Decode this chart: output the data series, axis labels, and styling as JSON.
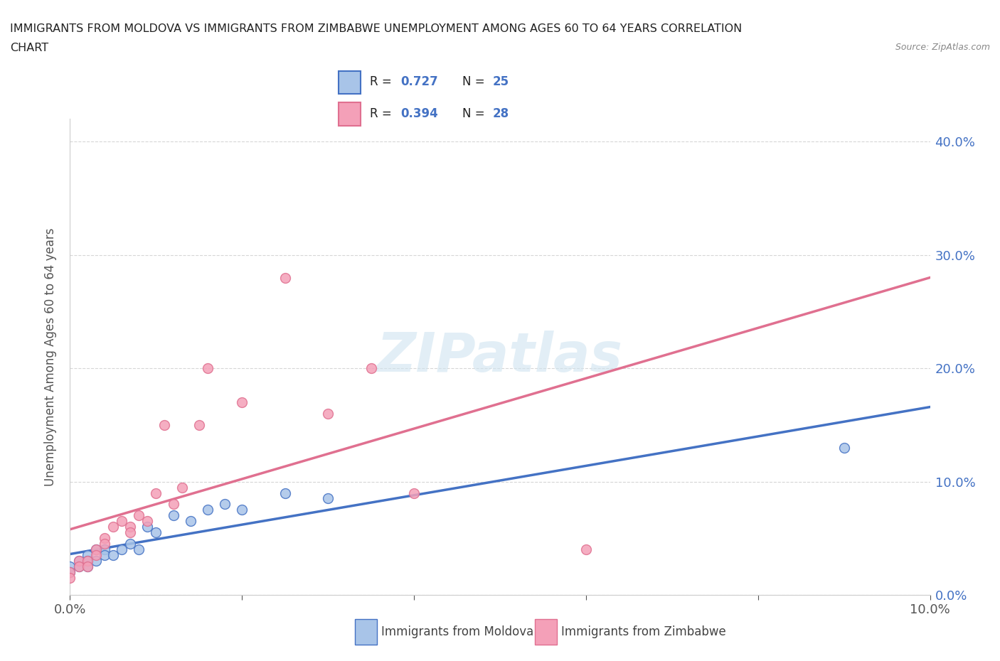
{
  "title_line1": "IMMIGRANTS FROM MOLDOVA VS IMMIGRANTS FROM ZIMBABWE UNEMPLOYMENT AMONG AGES 60 TO 64 YEARS CORRELATION",
  "title_line2": "CHART",
  "source": "Source: ZipAtlas.com",
  "ylabel": "Unemployment Among Ages 60 to 64 years",
  "xlim": [
    0.0,
    0.1
  ],
  "ylim": [
    0.0,
    0.42
  ],
  "yticks": [
    0.0,
    0.1,
    0.2,
    0.3,
    0.4
  ],
  "ytick_labels": [
    "0.0%",
    "10.0%",
    "20.0%",
    "30.0%",
    "40.0%"
  ],
  "xticks": [
    0.0,
    0.02,
    0.04,
    0.06,
    0.08,
    0.1
  ],
  "xtick_labels": [
    "0.0%",
    "",
    "",
    "",
    "",
    "10.0%"
  ],
  "moldova_color": "#a8c4e8",
  "zimbabwe_color": "#f4a0b8",
  "moldova_line_color": "#4472c4",
  "zimbabwe_line_color": "#e07090",
  "zimbabwe_dashed_color": "#e8a0b0",
  "right_axis_color": "#4472c4",
  "R_moldova": 0.727,
  "N_moldova": 25,
  "R_zimbabwe": 0.394,
  "N_zimbabwe": 28,
  "watermark": "ZIPatlas",
  "moldova_x": [
    0.0,
    0.0,
    0.001,
    0.001,
    0.002,
    0.002,
    0.002,
    0.003,
    0.003,
    0.004,
    0.004,
    0.005,
    0.006,
    0.007,
    0.008,
    0.009,
    0.01,
    0.012,
    0.014,
    0.016,
    0.018,
    0.02,
    0.025,
    0.03,
    0.09
  ],
  "moldova_y": [
    0.025,
    0.02,
    0.03,
    0.025,
    0.035,
    0.03,
    0.025,
    0.04,
    0.03,
    0.04,
    0.035,
    0.035,
    0.04,
    0.045,
    0.04,
    0.06,
    0.055,
    0.07,
    0.065,
    0.075,
    0.08,
    0.075,
    0.09,
    0.085,
    0.13
  ],
  "zimbabwe_x": [
    0.0,
    0.0,
    0.001,
    0.001,
    0.002,
    0.002,
    0.003,
    0.003,
    0.004,
    0.004,
    0.005,
    0.006,
    0.007,
    0.007,
    0.008,
    0.009,
    0.01,
    0.011,
    0.012,
    0.013,
    0.015,
    0.016,
    0.02,
    0.025,
    0.03,
    0.035,
    0.04,
    0.06
  ],
  "zimbabwe_y": [
    0.02,
    0.015,
    0.03,
    0.025,
    0.03,
    0.025,
    0.04,
    0.035,
    0.05,
    0.045,
    0.06,
    0.065,
    0.06,
    0.055,
    0.07,
    0.065,
    0.09,
    0.15,
    0.08,
    0.095,
    0.15,
    0.2,
    0.17,
    0.28,
    0.16,
    0.2,
    0.09,
    0.04
  ]
}
